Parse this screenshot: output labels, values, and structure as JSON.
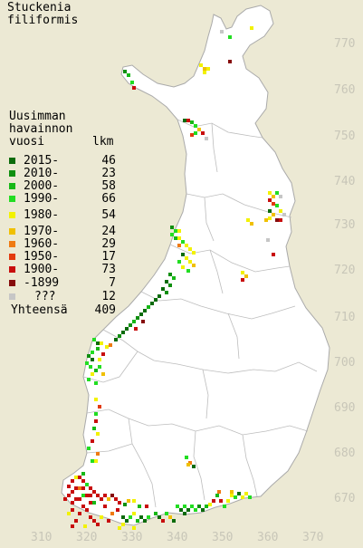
{
  "title_line1": "Stuckenia",
  "title_line2": "filiformis",
  "legend": {
    "head_line1": "Uusimman",
    "head_line2": "havainnon",
    "head_line3": "vuosi",
    "count_head": "lkm",
    "rows": [
      {
        "label": "2015-",
        "count": "46",
        "color": "#0b6b0b"
      },
      {
        "label": "2010-",
        "count": "23",
        "color": "#0f8f0f"
      },
      {
        "label": "2000-",
        "count": "58",
        "color": "#17b817"
      },
      {
        "label": "1990-",
        "count": "66",
        "color": "#22dd22"
      },
      {
        "label": "1980-",
        "count": "54",
        "color": "#f2f200"
      },
      {
        "label": "1970-",
        "count": "24",
        "color": "#f0c000"
      },
      {
        "label": "1960-",
        "count": "29",
        "color": "#ef7a12"
      },
      {
        "label": "1950-",
        "count": "17",
        "color": "#e33a0e"
      },
      {
        "label": "1900-",
        "count": "73",
        "color": "#c80d0d"
      },
      {
        "label": "-1899",
        "count": "7",
        "color": "#860c0c"
      },
      {
        "label": "???",
        "count": "12",
        "color": "#c6c6c6"
      }
    ],
    "total_label": "Yhteensä",
    "total_count": "409"
  },
  "y_axis": [
    "770",
    "760",
    "750",
    "740",
    "730",
    "720",
    "710",
    "700",
    "690",
    "680",
    "670"
  ],
  "x_axis": [
    "310",
    "320",
    "330",
    "340",
    "350",
    "360",
    "370"
  ],
  "colors": {
    "background": "#ece9d4",
    "land": "#ffffff",
    "border": "#aaaaaa",
    "axis_label": "#c8c6b8"
  }
}
